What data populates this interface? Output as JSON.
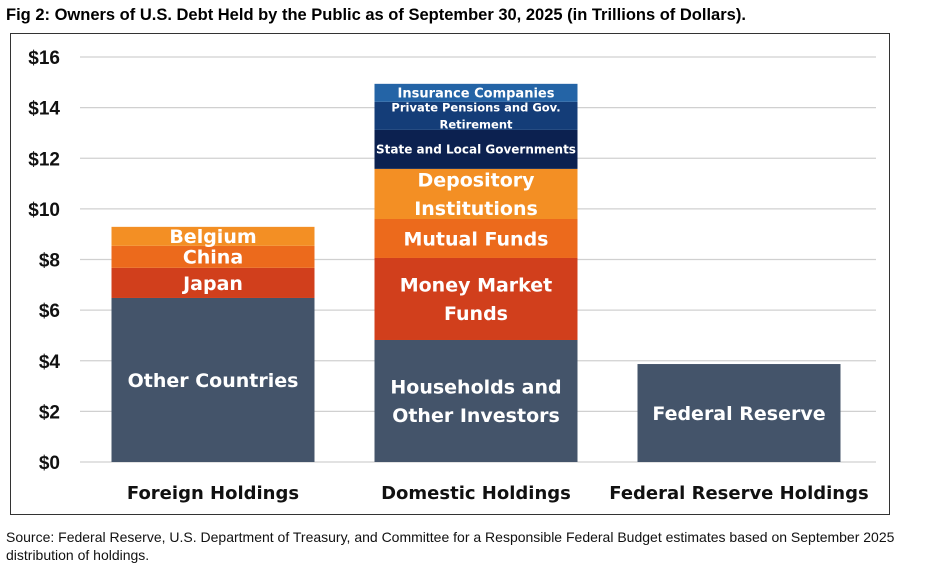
{
  "chart_data": {
    "type": "bar",
    "stacked": true,
    "title": "Fig 2: Owners of U.S. Debt Held by the Public as of September 30, 2025 (in Trillions of Dollars).",
    "xlabel": "",
    "ylabel": "",
    "ylim": [
      0,
      16
    ],
    "yticks": [
      0,
      2,
      4,
      6,
      8,
      10,
      12,
      14,
      16
    ],
    "ytick_labels": [
      "$0",
      "$2",
      "$4",
      "$6",
      "$8",
      "$10",
      "$12",
      "$14",
      "$16"
    ],
    "grid": true,
    "categories": [
      "Foreign Holdings",
      "Domestic Holdings",
      "Federal Reserve Holdings"
    ],
    "bars": [
      {
        "category": "Foreign Holdings",
        "segments": [
          {
            "name": "Other Countries",
            "value": 6.48,
            "color": "#44546a",
            "lines": [
              "Other Countries"
            ],
            "fs": 19
          },
          {
            "name": "Japan",
            "value": 1.19,
            "color": "#d13f1c",
            "lines": [
              "Japan"
            ],
            "fs": 19
          },
          {
            "name": "China",
            "value": 0.87,
            "color": "#ec6a1c",
            "lines": [
              "China"
            ],
            "fs": 19
          },
          {
            "name": "Belgium",
            "value": 0.75,
            "color": "#f38f24",
            "lines": [
              "Belgium"
            ],
            "fs": 19
          }
        ]
      },
      {
        "category": "Domestic Holdings",
        "segments": [
          {
            "name": "Households and Other Investors",
            "value": 4.82,
            "color": "#44546a",
            "lines": [
              "Households and",
              "Other Investors"
            ],
            "fs": 19
          },
          {
            "name": "Money Market Funds",
            "value": 3.24,
            "color": "#d13f1c",
            "lines": [
              "Money Market",
              "Funds"
            ],
            "fs": 19
          },
          {
            "name": "Mutual Funds",
            "value": 1.54,
            "color": "#ec6a1c",
            "lines": [
              "Mutual Funds"
            ],
            "fs": 19
          },
          {
            "name": "Depository Institutions",
            "value": 1.98,
            "color": "#f38f24",
            "lines": [
              "Depository",
              "Institutions"
            ],
            "fs": 19
          },
          {
            "name": "State and Local Governments",
            "value": 1.54,
            "color": "#0c2150",
            "lines": [
              "State and Local Governments"
            ],
            "fs": 12
          },
          {
            "name": "Private Pensions and Gov. Retirement",
            "value": 1.11,
            "color": "#143d78",
            "lines": [
              "Private Pensions and Gov.",
              "Retirement"
            ],
            "fs": 11.5
          },
          {
            "name": "Insurance Companies",
            "value": 0.71,
            "color": "#2464a6",
            "lines": [
              "Insurance Companies"
            ],
            "fs": 13
          }
        ]
      },
      {
        "category": "Federal Reserve Holdings",
        "segments": [
          {
            "name": "Federal Reserve",
            "value": 3.87,
            "color": "#44546a",
            "lines": [
              "Federal Reserve"
            ],
            "fs": 19
          }
        ]
      }
    ]
  },
  "source": "Source: Federal Reserve, U.S. Department of Treasury, and Committee for a Responsible Federal Budget estimates based on September 2025 distribution of holdings."
}
